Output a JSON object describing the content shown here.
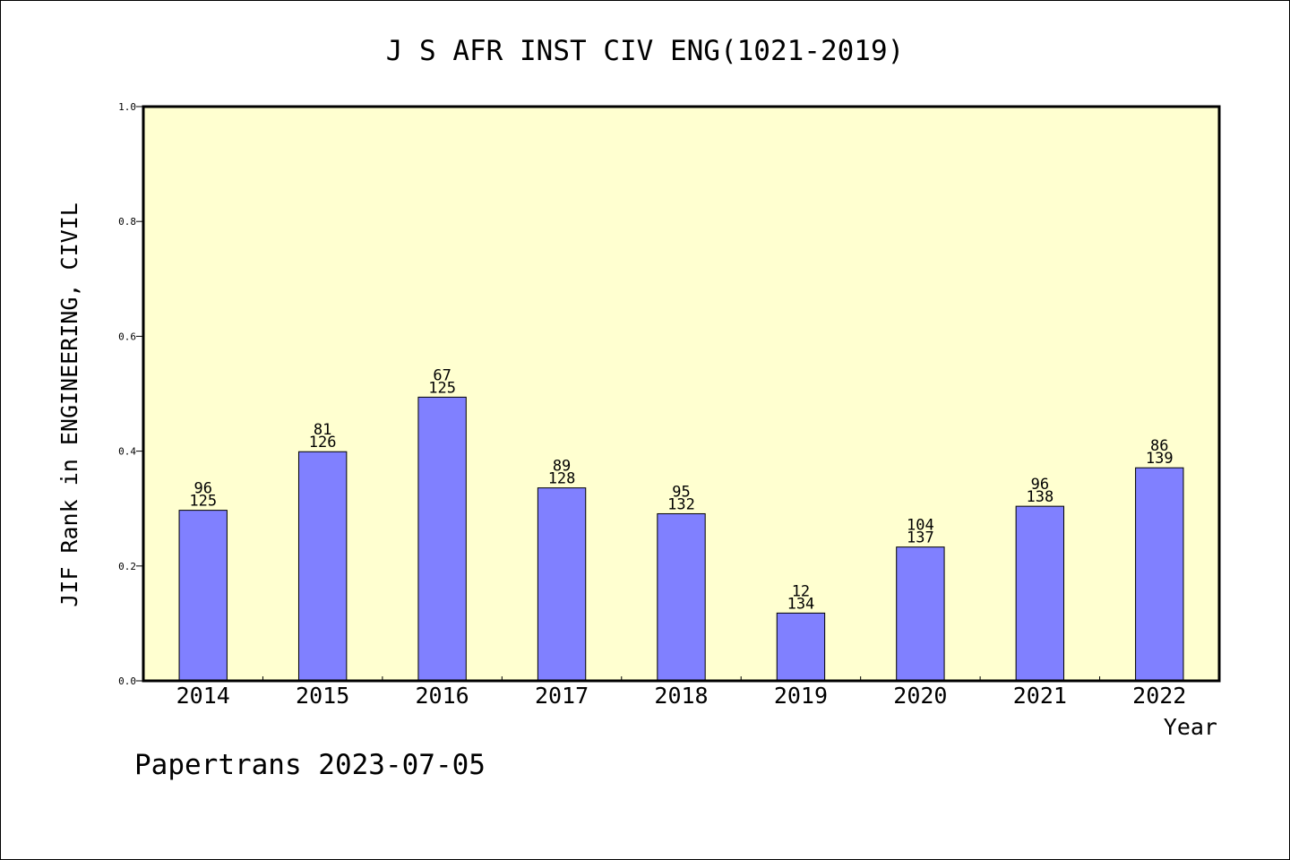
{
  "chart_data": {
    "type": "bar",
    "title": "J S AFR INST CIV ENG(1021-2019)",
    "xlabel": "Year",
    "ylabel": "JIF Rank in ENGINEERING, CIVIL",
    "categories": [
      "2014",
      "2015",
      "2016",
      "2017",
      "2018",
      "2019",
      "2020",
      "2021",
      "2022"
    ],
    "values": [
      0.297,
      0.399,
      0.494,
      0.336,
      0.291,
      0.118,
      0.233,
      0.304,
      0.371
    ],
    "label_top": [
      "96",
      "81",
      "67",
      "89",
      "95",
      "12",
      "104",
      "96",
      "86"
    ],
    "label_bottom": [
      "125",
      "126",
      "125",
      "128",
      "132",
      "134",
      "137",
      "138",
      "139"
    ],
    "ylim": [
      0,
      1.0
    ],
    "yticks": [
      "0.0",
      "0.2",
      "0.4",
      "0.6",
      "0.8",
      "1.0"
    ],
    "grid": false,
    "colors": {
      "bar": "#8080ff",
      "plot_background": "#ffffd0",
      "axis": "#000000"
    }
  },
  "footer": "Papertrans 2023-07-05"
}
